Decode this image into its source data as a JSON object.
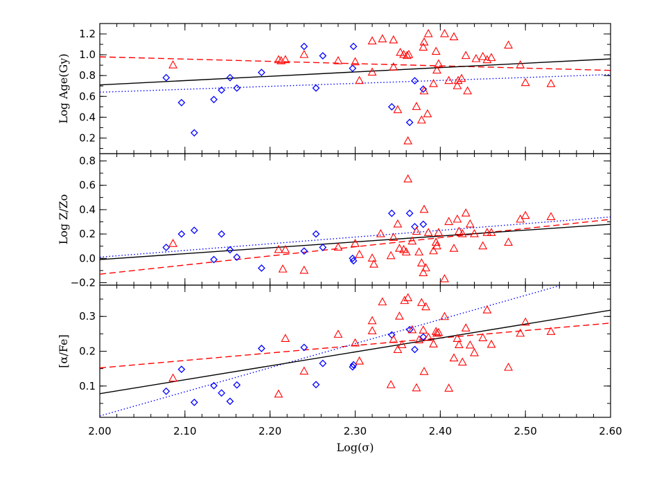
{
  "chart_data": {
    "type": "scatter",
    "shared_x": {
      "label": "Log(σ)",
      "range": [
        2.0,
        2.6
      ],
      "ticks": [
        2.0,
        2.1,
        2.2,
        2.3,
        2.4,
        2.5,
        2.6
      ],
      "tick_labels": [
        "2.00",
        "2.10",
        "2.20",
        "2.30",
        "2.40",
        "2.50",
        "2.60"
      ]
    },
    "colors": {
      "blue": "#0000ff",
      "red": "#ff0000",
      "black": "#000000"
    },
    "panels": [
      {
        "ylabel": "Log Age(Gy)",
        "ylim": [
          0.05,
          1.3
        ],
        "yticks": [
          0.2,
          0.4,
          0.6,
          0.8,
          1.0,
          1.2
        ],
        "ytick_labels": [
          "0.2",
          "0.4",
          "0.6",
          "0.8",
          "1.0",
          "1.2"
        ],
        "blue_diamonds": [
          [
            2.078,
            0.78
          ],
          [
            2.096,
            0.54
          ],
          [
            2.111,
            0.25
          ],
          [
            2.134,
            0.57
          ],
          [
            2.143,
            0.66
          ],
          [
            2.153,
            0.78
          ],
          [
            2.161,
            0.68
          ],
          [
            2.19,
            0.83
          ],
          [
            2.24,
            1.08
          ],
          [
            2.254,
            0.68
          ],
          [
            2.262,
            0.99
          ],
          [
            2.297,
            0.87
          ],
          [
            2.298,
            1.08
          ],
          [
            2.343,
            0.5
          ],
          [
            2.364,
            0.35
          ],
          [
            2.37,
            0.75
          ],
          [
            2.38,
            0.67
          ]
        ],
        "red_triangles": [
          [
            2.086,
            0.9
          ],
          [
            2.21,
            0.95
          ],
          [
            2.213,
            0.94
          ],
          [
            2.218,
            0.95
          ],
          [
            2.24,
            1.0
          ],
          [
            2.28,
            0.94
          ],
          [
            2.3,
            0.93
          ],
          [
            2.305,
            0.75
          ],
          [
            2.32,
            0.83
          ],
          [
            2.32,
            1.13
          ],
          [
            2.332,
            1.15
          ],
          [
            2.345,
            1.14
          ],
          [
            2.345,
            0.88
          ],
          [
            2.35,
            0.47
          ],
          [
            2.353,
            1.02
          ],
          [
            2.357,
            1.0
          ],
          [
            2.361,
            0.99
          ],
          [
            2.362,
            0.17
          ],
          [
            2.363,
            1.0
          ],
          [
            2.372,
            0.5
          ],
          [
            2.378,
            0.37
          ],
          [
            2.38,
            1.07
          ],
          [
            2.381,
            1.12
          ],
          [
            2.381,
            0.65
          ],
          [
            2.385,
            0.43
          ],
          [
            2.386,
            1.2
          ],
          [
            2.392,
            0.72
          ],
          [
            2.395,
            1.03
          ],
          [
            2.396,
            0.85
          ],
          [
            2.398,
            0.91
          ],
          [
            2.405,
            1.2
          ],
          [
            2.41,
            0.75
          ],
          [
            2.416,
            1.17
          ],
          [
            2.42,
            0.7
          ],
          [
            2.421,
            0.75
          ],
          [
            2.425,
            0.77
          ],
          [
            2.43,
            0.99
          ],
          [
            2.432,
            0.65
          ],
          [
            2.442,
            0.96
          ],
          [
            2.45,
            0.98
          ],
          [
            2.455,
            0.95
          ],
          [
            2.46,
            0.97
          ],
          [
            2.48,
            1.09
          ],
          [
            2.494,
            0.9
          ],
          [
            2.5,
            0.73
          ],
          [
            2.53,
            0.72
          ]
        ],
        "fit_black_solid": [
          [
            2.0,
            0.71
          ],
          [
            2.6,
            0.96
          ]
        ],
        "fit_blue_dotted": [
          [
            2.0,
            0.64
          ],
          [
            2.6,
            0.81
          ]
        ],
        "fit_red_dashed": [
          [
            2.0,
            0.98
          ],
          [
            2.6,
            0.85
          ]
        ]
      },
      {
        "ylabel": "Log Z/Zo",
        "ylim": [
          -0.22,
          0.86
        ],
        "yticks": [
          -0.2,
          0.0,
          0.2,
          0.4,
          0.6,
          0.8
        ],
        "ytick_labels": [
          "−0.2",
          "0.0",
          "0.2",
          "0.4",
          "0.6",
          "0.8"
        ],
        "blue_diamonds": [
          [
            2.078,
            0.09
          ],
          [
            2.096,
            0.2
          ],
          [
            2.111,
            0.23
          ],
          [
            2.134,
            -0.01
          ],
          [
            2.143,
            0.2
          ],
          [
            2.153,
            0.07
          ],
          [
            2.161,
            0.01
          ],
          [
            2.19,
            -0.08
          ],
          [
            2.24,
            0.06
          ],
          [
            2.254,
            0.2
          ],
          [
            2.262,
            0.09
          ],
          [
            2.297,
            0.0
          ],
          [
            2.298,
            -0.02
          ],
          [
            2.343,
            0.37
          ],
          [
            2.364,
            0.37
          ],
          [
            2.37,
            0.26
          ],
          [
            2.38,
            0.28
          ]
        ],
        "red_triangles": [
          [
            2.086,
            0.12
          ],
          [
            2.21,
            0.07
          ],
          [
            2.215,
            -0.09
          ],
          [
            2.218,
            0.07
          ],
          [
            2.24,
            -0.1
          ],
          [
            2.28,
            0.09
          ],
          [
            2.3,
            0.12
          ],
          [
            2.305,
            0.03
          ],
          [
            2.32,
            0.0
          ],
          [
            2.322,
            -0.05
          ],
          [
            2.33,
            0.2
          ],
          [
            2.342,
            0.02
          ],
          [
            2.345,
            0.17
          ],
          [
            2.35,
            0.28
          ],
          [
            2.352,
            0.08
          ],
          [
            2.357,
            0.07
          ],
          [
            2.36,
            0.05
          ],
          [
            2.362,
            0.65
          ],
          [
            2.367,
            0.14
          ],
          [
            2.372,
            0.22
          ],
          [
            2.375,
            0.05
          ],
          [
            2.378,
            -0.04
          ],
          [
            2.38,
            -0.12
          ],
          [
            2.381,
            0.4
          ],
          [
            2.383,
            -0.08
          ],
          [
            2.386,
            0.21
          ],
          [
            2.392,
            0.06
          ],
          [
            2.395,
            0.13
          ],
          [
            2.396,
            0.1
          ],
          [
            2.398,
            0.21
          ],
          [
            2.405,
            -0.17
          ],
          [
            2.41,
            0.3
          ],
          [
            2.416,
            0.08
          ],
          [
            2.42,
            0.32
          ],
          [
            2.422,
            0.22
          ],
          [
            2.426,
            0.2
          ],
          [
            2.43,
            0.37
          ],
          [
            2.435,
            0.28
          ],
          [
            2.44,
            0.2
          ],
          [
            2.45,
            0.1
          ],
          [
            2.455,
            0.21
          ],
          [
            2.46,
            0.21
          ],
          [
            2.48,
            0.13
          ],
          [
            2.494,
            0.32
          ],
          [
            2.5,
            0.35
          ],
          [
            2.53,
            0.34
          ]
        ],
        "fit_black_solid": [
          [
            2.0,
            -0.01
          ],
          [
            2.6,
            0.28
          ]
        ],
        "fit_blue_dotted": [
          [
            2.0,
            0.01
          ],
          [
            2.6,
            0.34
          ]
        ],
        "fit_red_dashed": [
          [
            2.0,
            -0.13
          ],
          [
            2.6,
            0.32
          ]
        ]
      },
      {
        "ylabel": "[α/Fe]",
        "ylim": [
          0.01,
          0.39
        ],
        "yticks": [
          0.1,
          0.2,
          0.3
        ],
        "ytick_labels": [
          "0.1",
          "0.2",
          "0.3"
        ],
        "blue_diamonds": [
          [
            2.078,
            0.085
          ],
          [
            2.096,
            0.148
          ],
          [
            2.111,
            0.053
          ],
          [
            2.134,
            0.101
          ],
          [
            2.143,
            0.08
          ],
          [
            2.153,
            0.056
          ],
          [
            2.161,
            0.103
          ],
          [
            2.19,
            0.208
          ],
          [
            2.24,
            0.211
          ],
          [
            2.254,
            0.104
          ],
          [
            2.262,
            0.165
          ],
          [
            2.297,
            0.155
          ],
          [
            2.298,
            0.161
          ],
          [
            2.343,
            0.247
          ],
          [
            2.364,
            0.262
          ],
          [
            2.37,
            0.205
          ],
          [
            2.38,
            0.241
          ]
        ],
        "red_triangles": [
          [
            2.086,
            0.122
          ],
          [
            2.21,
            0.076
          ],
          [
            2.218,
            0.236
          ],
          [
            2.24,
            0.142
          ],
          [
            2.28,
            0.248
          ],
          [
            2.3,
            0.223
          ],
          [
            2.305,
            0.171
          ],
          [
            2.32,
            0.287
          ],
          [
            2.32,
            0.258
          ],
          [
            2.332,
            0.341
          ],
          [
            2.342,
            0.103
          ],
          [
            2.345,
            0.233
          ],
          [
            2.35,
            0.204
          ],
          [
            2.352,
            0.3
          ],
          [
            2.355,
            0.218
          ],
          [
            2.358,
            0.345
          ],
          [
            2.362,
            0.353
          ],
          [
            2.367,
            0.261
          ],
          [
            2.372,
            0.094
          ],
          [
            2.375,
            0.232
          ],
          [
            2.378,
            0.339
          ],
          [
            2.38,
            0.26
          ],
          [
            2.381,
            0.141
          ],
          [
            2.383,
            0.327
          ],
          [
            2.386,
            0.239
          ],
          [
            2.392,
            0.22
          ],
          [
            2.395,
            0.256
          ],
          [
            2.396,
            0.251
          ],
          [
            2.398,
            0.253
          ],
          [
            2.405,
            0.299
          ],
          [
            2.41,
            0.093
          ],
          [
            2.416,
            0.18
          ],
          [
            2.42,
            0.236
          ],
          [
            2.422,
            0.218
          ],
          [
            2.426,
            0.168
          ],
          [
            2.43,
            0.266
          ],
          [
            2.435,
            0.217
          ],
          [
            2.44,
            0.195
          ],
          [
            2.45,
            0.238
          ],
          [
            2.455,
            0.318
          ],
          [
            2.46,
            0.219
          ],
          [
            2.48,
            0.153
          ],
          [
            2.494,
            0.251
          ],
          [
            2.5,
            0.283
          ],
          [
            2.53,
            0.256
          ]
        ],
        "fit_black_solid": [
          [
            2.0,
            0.078
          ],
          [
            2.6,
            0.318
          ]
        ],
        "fit_blue_dotted": [
          [
            2.0,
            0.014
          ],
          [
            2.6,
            0.43
          ]
        ],
        "fit_red_dashed": [
          [
            2.0,
            0.152
          ],
          [
            2.6,
            0.281
          ]
        ]
      }
    ]
  }
}
